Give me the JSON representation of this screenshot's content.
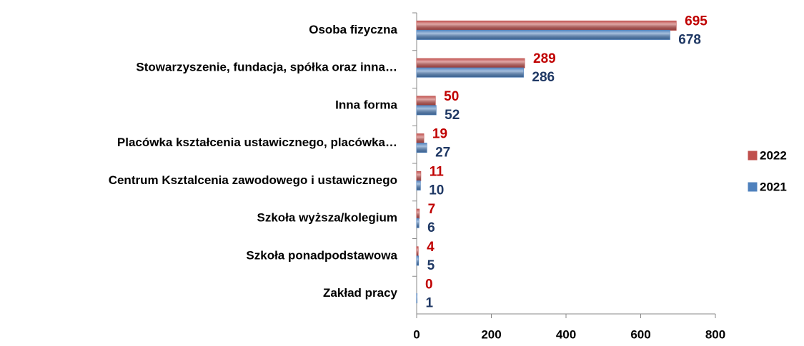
{
  "chart_data": {
    "type": "bar",
    "orientation": "horizontal",
    "categories": [
      "Osoba fizyczna",
      "Stowarzyszenie, fundacja, spółka oraz inna…",
      "Inna forma",
      "Placówka kształcenia ustawicznego, placówka…",
      "Centrum Ksztalcenia zawodowego i ustawicznego",
      "Szkoła wyższa/kolegium",
      "Szkoła ponadpodstawowa",
      "Zakład pracy"
    ],
    "series": [
      {
        "name": "2022",
        "color": "#c0504d",
        "label_color": "#c00000",
        "values": [
          695,
          289,
          50,
          19,
          11,
          7,
          4,
          0
        ]
      },
      {
        "name": "2021",
        "color": "#4f81bd",
        "label_color": "#1f3864",
        "values": [
          678,
          286,
          52,
          27,
          10,
          6,
          5,
          1
        ]
      }
    ],
    "xlim": [
      0,
      800
    ],
    "xticks": [
      0,
      200,
      400,
      600,
      800
    ],
    "legend": "right"
  }
}
